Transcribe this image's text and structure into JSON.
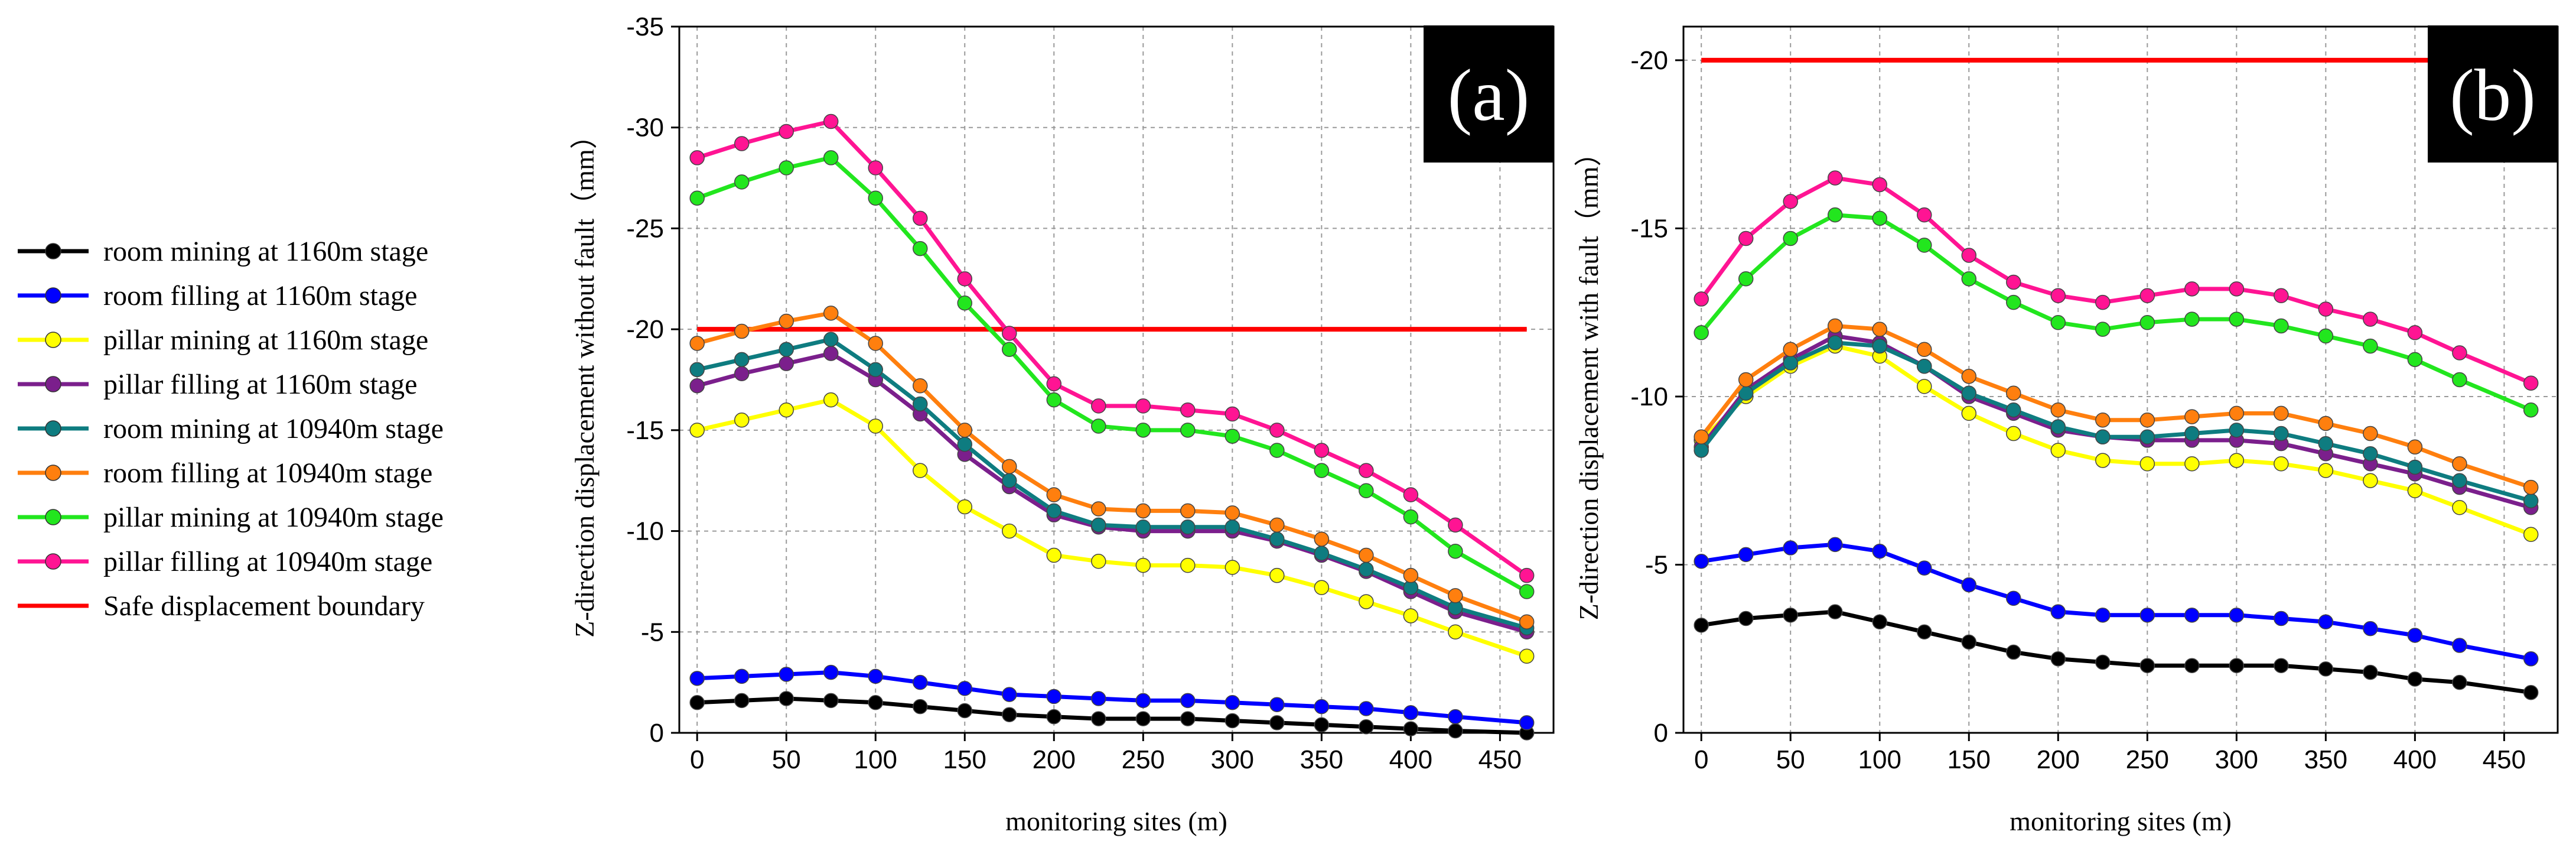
{
  "legend": {
    "items": [
      {
        "label": "room mining at 1160m stage",
        "color": "#000000"
      },
      {
        "label": "room filling at 1160m stage",
        "color": "#0000FF"
      },
      {
        "label": "pillar mining at 1160m stage",
        "color": "#FFFF00"
      },
      {
        "label": "pillar filling at 1160m stage",
        "color": "#7B1F8C"
      },
      {
        "label": "room mining at 10940m stage",
        "color": "#0E7C80"
      },
      {
        "label": "room filling at 10940m stage",
        "color": "#FF7F0E"
      },
      {
        "label": "pillar mining at 10940m stage",
        "color": "#22E61E"
      },
      {
        "label": "pillar filling at 10940m stage",
        "color": "#FF1493"
      },
      {
        "label": "Safe displacement boundary",
        "color": "#FF0000"
      }
    ]
  },
  "chart_data": [
    {
      "type": "line",
      "panel_label": "(a)",
      "title": "",
      "xlabel": "monitoring sites (m)",
      "ylabel": "Z-direction displacement without fault（mm）",
      "xlim": [
        -10,
        480
      ],
      "ylim": [
        0,
        -35
      ],
      "y_inverted": true,
      "grid": true,
      "x_ticks": [
        0,
        50,
        100,
        150,
        200,
        250,
        300,
        350,
        400,
        450
      ],
      "x_tick_labels": [
        "0",
        "50",
        "100",
        "150",
        "200",
        "250",
        "300",
        "350",
        "400",
        "450"
      ],
      "y_ticks": [
        0,
        -5,
        -10,
        -15,
        -20,
        -25,
        -30,
        -35
      ],
      "y_tick_labels": [
        "0",
        "-5",
        "-10",
        "-15",
        "-20",
        "-25",
        "-30",
        "-35"
      ],
      "safe_boundary": {
        "y": -20,
        "x_range": [
          0,
          465
        ],
        "name": "Safe displacement boundary"
      },
      "series": [
        {
          "name": "room mining at 1160m stage",
          "x": [
            0,
            25,
            50,
            75,
            100,
            125,
            150,
            175,
            200,
            225,
            250,
            275,
            300,
            325,
            350,
            375,
            400,
            425,
            465
          ],
          "values": [
            -1.5,
            -1.6,
            -1.7,
            -1.6,
            -1.5,
            -1.3,
            -1.1,
            -0.9,
            -0.8,
            -0.7,
            -0.7,
            -0.7,
            -0.6,
            -0.5,
            -0.4,
            -0.3,
            -0.2,
            -0.1,
            0
          ]
        },
        {
          "name": "room filling at 1160m stage",
          "x": [
            0,
            25,
            50,
            75,
            100,
            125,
            150,
            175,
            200,
            225,
            250,
            275,
            300,
            325,
            350,
            375,
            400,
            425,
            465
          ],
          "values": [
            -2.7,
            -2.8,
            -2.9,
            -3.0,
            -2.8,
            -2.5,
            -2.2,
            -1.9,
            -1.8,
            -1.7,
            -1.6,
            -1.6,
            -1.5,
            -1.4,
            -1.3,
            -1.2,
            -1.0,
            -0.8,
            -0.5
          ]
        },
        {
          "name": "pillar mining at 1160m stage",
          "x": [
            0,
            25,
            50,
            75,
            100,
            125,
            150,
            175,
            200,
            225,
            250,
            275,
            300,
            325,
            350,
            375,
            400,
            425,
            465
          ],
          "values": [
            -15.0,
            -15.5,
            -16.0,
            -16.5,
            -15.2,
            -13.0,
            -11.2,
            -10.0,
            -8.8,
            -8.5,
            -8.3,
            -8.3,
            -8.2,
            -7.8,
            -7.2,
            -6.5,
            -5.8,
            -5.0,
            -3.8
          ]
        },
        {
          "name": "pillar filling at 1160m stage",
          "x": [
            0,
            25,
            50,
            75,
            100,
            125,
            150,
            175,
            200,
            225,
            250,
            275,
            300,
            325,
            350,
            375,
            400,
            425,
            465
          ],
          "values": [
            -17.2,
            -17.8,
            -18.3,
            -18.8,
            -17.5,
            -15.8,
            -13.8,
            -12.2,
            -10.8,
            -10.2,
            -10.0,
            -10.0,
            -10.0,
            -9.5,
            -8.8,
            -8.0,
            -7.0,
            -6.0,
            -5.0
          ]
        },
        {
          "name": "room mining at 10940m stage",
          "x": [
            0,
            25,
            50,
            75,
            100,
            125,
            150,
            175,
            200,
            225,
            250,
            275,
            300,
            325,
            350,
            375,
            400,
            425,
            465
          ],
          "values": [
            -18.0,
            -18.5,
            -19.0,
            -19.5,
            -18.0,
            -16.3,
            -14.3,
            -12.5,
            -11.0,
            -10.3,
            -10.2,
            -10.2,
            -10.2,
            -9.6,
            -8.9,
            -8.1,
            -7.2,
            -6.2,
            -5.2
          ]
        },
        {
          "name": "room filling at 10940m stage",
          "x": [
            0,
            25,
            50,
            75,
            100,
            125,
            150,
            175,
            200,
            225,
            250,
            275,
            300,
            325,
            350,
            375,
            400,
            425,
            465
          ],
          "values": [
            -19.3,
            -19.9,
            -20.4,
            -20.8,
            -19.3,
            -17.2,
            -15.0,
            -13.2,
            -11.8,
            -11.1,
            -11.0,
            -11.0,
            -10.9,
            -10.3,
            -9.6,
            -8.8,
            -7.8,
            -6.8,
            -5.5
          ]
        },
        {
          "name": "pillar mining at 10940m stage",
          "x": [
            0,
            25,
            50,
            75,
            100,
            125,
            150,
            175,
            200,
            225,
            250,
            275,
            300,
            325,
            350,
            375,
            400,
            425,
            465
          ],
          "values": [
            -26.5,
            -27.3,
            -28.0,
            -28.5,
            -26.5,
            -24.0,
            -21.3,
            -19.0,
            -16.5,
            -15.2,
            -15.0,
            -15.0,
            -14.7,
            -14.0,
            -13.0,
            -12.0,
            -10.7,
            -9.0,
            -7.0
          ]
        },
        {
          "name": "pillar filling at 10940m stage",
          "x": [
            0,
            25,
            50,
            75,
            100,
            125,
            150,
            175,
            200,
            225,
            250,
            275,
            300,
            325,
            350,
            375,
            400,
            425,
            465
          ],
          "values": [
            -28.5,
            -29.2,
            -29.8,
            -30.3,
            -28.0,
            -25.5,
            -22.5,
            -19.8,
            -17.3,
            -16.2,
            -16.2,
            -16.0,
            -15.8,
            -15.0,
            -14.0,
            -13.0,
            -11.8,
            -10.3,
            -7.8
          ]
        }
      ]
    },
    {
      "type": "line",
      "panel_label": "(b)",
      "title": "",
      "xlabel": "monitoring sites (m)",
      "ylabel": "Z-direction displacement with fault（mm）",
      "xlim": [
        -10,
        480
      ],
      "ylim": [
        0,
        -21
      ],
      "y_inverted": true,
      "grid": true,
      "x_ticks": [
        0,
        50,
        100,
        150,
        200,
        250,
        300,
        350,
        400,
        450
      ],
      "x_tick_labels": [
        "0",
        "50",
        "100",
        "150",
        "200",
        "250",
        "300",
        "350",
        "400",
        "450"
      ],
      "y_ticks": [
        0,
        -5,
        -10,
        -15,
        -20
      ],
      "y_tick_labels": [
        "0",
        "-5",
        "-10",
        "-15",
        "-20"
      ],
      "safe_boundary": {
        "y": -20,
        "x_range": [
          0,
          465
        ],
        "name": "Safe displacement boundary"
      },
      "series": [
        {
          "name": "room mining at 1160m stage",
          "x": [
            0,
            25,
            50,
            75,
            100,
            125,
            150,
            175,
            200,
            225,
            250,
            275,
            300,
            325,
            350,
            375,
            400,
            425,
            465
          ],
          "values": [
            -3.2,
            -3.4,
            -3.5,
            -3.6,
            -3.3,
            -3.0,
            -2.7,
            -2.4,
            -2.2,
            -2.1,
            -2.0,
            -2.0,
            -2.0,
            -2.0,
            -1.9,
            -1.8,
            -1.6,
            -1.5,
            -1.2
          ]
        },
        {
          "name": "room filling at 1160m stage",
          "x": [
            0,
            25,
            50,
            75,
            100,
            125,
            150,
            175,
            200,
            225,
            250,
            275,
            300,
            325,
            350,
            375,
            400,
            425,
            465
          ],
          "values": [
            -5.1,
            -5.3,
            -5.5,
            -5.6,
            -5.4,
            -4.9,
            -4.4,
            -4.0,
            -3.6,
            -3.5,
            -3.5,
            -3.5,
            -3.5,
            -3.4,
            -3.3,
            -3.1,
            -2.9,
            -2.6,
            -2.2
          ]
        },
        {
          "name": "pillar mining at 1160m stage",
          "x": [
            0,
            25,
            50,
            75,
            100,
            125,
            150,
            175,
            200,
            225,
            250,
            275,
            300,
            325,
            350,
            375,
            400,
            425,
            465
          ],
          "values": [
            -8.7,
            -10.0,
            -10.9,
            -11.5,
            -11.2,
            -10.3,
            -9.5,
            -8.9,
            -8.4,
            -8.1,
            -8.0,
            -8.0,
            -8.1,
            -8.0,
            -7.8,
            -7.5,
            -7.2,
            -6.7,
            -5.9
          ]
        },
        {
          "name": "pillar filling at 1160m stage",
          "x": [
            0,
            25,
            50,
            75,
            100,
            125,
            150,
            175,
            200,
            225,
            250,
            275,
            300,
            325,
            350,
            375,
            400,
            425,
            465
          ],
          "values": [
            -8.5,
            -10.2,
            -11.1,
            -11.8,
            -11.6,
            -10.9,
            -10.0,
            -9.5,
            -9.0,
            -8.8,
            -8.7,
            -8.7,
            -8.7,
            -8.6,
            -8.3,
            -8.0,
            -7.7,
            -7.3,
            -6.7
          ]
        },
        {
          "name": "room mining at 10940m stage",
          "x": [
            0,
            25,
            50,
            75,
            100,
            125,
            150,
            175,
            200,
            225,
            250,
            275,
            300,
            325,
            350,
            375,
            400,
            425,
            465
          ],
          "values": [
            -8.4,
            -10.1,
            -11.0,
            -11.6,
            -11.5,
            -10.9,
            -10.1,
            -9.6,
            -9.1,
            -8.8,
            -8.8,
            -8.9,
            -9.0,
            -8.9,
            -8.6,
            -8.3,
            -7.9,
            -7.5,
            -6.9
          ]
        },
        {
          "name": "room filling at 10940m stage",
          "x": [
            0,
            25,
            50,
            75,
            100,
            125,
            150,
            175,
            200,
            225,
            250,
            275,
            300,
            325,
            350,
            375,
            400,
            425,
            465
          ],
          "values": [
            -8.8,
            -10.5,
            -11.4,
            -12.1,
            -12.0,
            -11.4,
            -10.6,
            -10.1,
            -9.6,
            -9.3,
            -9.3,
            -9.4,
            -9.5,
            -9.5,
            -9.2,
            -8.9,
            -8.5,
            -8.0,
            -7.3
          ]
        },
        {
          "name": "pillar mining at 10940m stage",
          "x": [
            0,
            25,
            50,
            75,
            100,
            125,
            150,
            175,
            200,
            225,
            250,
            275,
            300,
            325,
            350,
            375,
            400,
            425,
            465
          ],
          "values": [
            -11.9,
            -13.5,
            -14.7,
            -15.4,
            -15.3,
            -14.5,
            -13.5,
            -12.8,
            -12.2,
            -12.0,
            -12.2,
            -12.3,
            -12.3,
            -12.1,
            -11.8,
            -11.5,
            -11.1,
            -10.5,
            -9.6
          ]
        },
        {
          "name": "pillar filling at 10940m stage",
          "x": [
            0,
            25,
            50,
            75,
            100,
            125,
            150,
            175,
            200,
            225,
            250,
            275,
            300,
            325,
            350,
            375,
            400,
            425,
            465
          ],
          "values": [
            -12.9,
            -14.7,
            -15.8,
            -16.5,
            -16.3,
            -15.4,
            -14.2,
            -13.4,
            -13.0,
            -12.8,
            -13.0,
            -13.2,
            -13.2,
            -13.0,
            -12.6,
            -12.3,
            -11.9,
            -11.3,
            -10.4
          ]
        }
      ]
    }
  ]
}
